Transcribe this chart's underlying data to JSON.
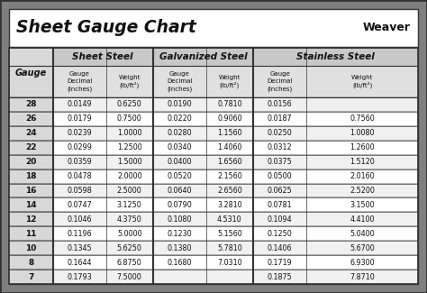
{
  "title": "Sheet Gauge Chart",
  "gauges": [
    28,
    26,
    24,
    22,
    20,
    18,
    16,
    14,
    12,
    11,
    10,
    8,
    7
  ],
  "sheet_steel": {
    "header": "Sheet Steel",
    "decimal": [
      "0.0149",
      "0.0179",
      "0.0239",
      "0.0299",
      "0.0359",
      "0.0478",
      "0.0598",
      "0.0747",
      "0.1046",
      "0.1196",
      "0.1345",
      "0.1644",
      "0.1793"
    ],
    "weight": [
      "0.6250",
      "0.7500",
      "1.0000",
      "1.2500",
      "1.5000",
      "2.0000",
      "2.5000",
      "3.1250",
      "4.3750",
      "5.0000",
      "5.6250",
      "6.8750",
      "7.5000"
    ]
  },
  "galvanized_steel": {
    "header": "Galvanized Steel",
    "decimal": [
      "0.0190",
      "0.0220",
      "0.0280",
      "0.0340",
      "0.0400",
      "0.0520",
      "0.0640",
      "0.0790",
      "0.1080",
      "0.1230",
      "0.1380",
      "0.1680",
      ""
    ],
    "weight": [
      "0.7810",
      "0.9060",
      "1.1560",
      "1.4060",
      "1.6560",
      "2.1560",
      "2.6560",
      "3.2810",
      "4.5310",
      "5.1560",
      "5.7810",
      "7.0310",
      ""
    ]
  },
  "stainless_steel": {
    "header": "Stainless Steel",
    "decimal": [
      "0.0156",
      "0.0187",
      "0.0250",
      "0.0312",
      "0.0375",
      "0.0500",
      "0.0625",
      "0.0781",
      "0.1094",
      "0.1250",
      "0.1406",
      "0.1719",
      "0.1875"
    ],
    "weight": [
      "",
      "0.7560",
      "1.0080",
      "1.2600",
      "1.5120",
      "2.0160",
      "2.5200",
      "3.1500",
      "4.4100",
      "5.0400",
      "5.6700",
      "6.9300",
      "7.8710"
    ]
  },
  "bg_outer": "#7f7f7f",
  "bg_title": "#ffffff",
  "bg_header1": "#c8c8c8",
  "bg_header2": "#e0e0e0",
  "bg_data_odd": "#f0f0f0",
  "bg_data_even": "#ffffff",
  "bg_gauge_col": "#d8d8d8",
  "border_dark": "#333333",
  "border_mid": "#666666",
  "text_dark": "#111111",
  "text_data": "#222222",
  "weight_label": "(lb/ft²)"
}
